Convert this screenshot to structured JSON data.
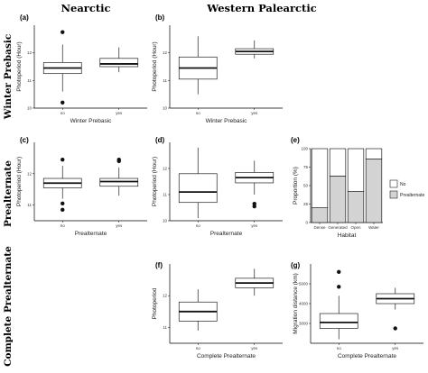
{
  "column_headers": [
    "Nearctic",
    "Western Palearctic"
  ],
  "row_headers": [
    "Winter Prebasic",
    "Prealternate",
    "Complete Prealternate"
  ],
  "chart_data": [
    {
      "id": "a",
      "label": "(a)",
      "type": "box",
      "xlabel": "Winter Prebasic",
      "ylabel": "Photoperiod (Hour)",
      "categories": [
        "no",
        "yes"
      ],
      "ylim": [
        10,
        13
      ],
      "yticks": [
        10,
        11,
        12
      ],
      "boxes": [
        {
          "whisker_low": 10.6,
          "q1": 11.25,
          "median": 11.45,
          "q3": 11.65,
          "whisker_high": 12.3,
          "outliers": [
            10.2,
            12.75
          ]
        },
        {
          "whisker_low": 11.3,
          "q1": 11.5,
          "median": 11.6,
          "q3": 11.8,
          "whisker_high": 12.2,
          "outliers": []
        }
      ]
    },
    {
      "id": "b",
      "label": "(b)",
      "type": "box",
      "xlabel": "Winter Prebasic",
      "ylabel": "Photoperiod (Hour)",
      "categories": [
        "no",
        "yes"
      ],
      "ylim": [
        10,
        13
      ],
      "yticks": [
        10,
        11,
        12
      ],
      "boxes": [
        {
          "whisker_low": 10.5,
          "q1": 11.05,
          "median": 11.45,
          "q3": 11.85,
          "whisker_high": 12.6,
          "outliers": []
        },
        {
          "whisker_low": 11.8,
          "q1": 11.95,
          "median": 12.05,
          "q3": 12.15,
          "whisker_high": 12.45,
          "outliers": []
        }
      ]
    },
    {
      "id": "c",
      "label": "(c)",
      "type": "box",
      "xlabel": "Prealternate",
      "ylabel": "Photoperiod (Hour)",
      "categories": [
        "no",
        "yes"
      ],
      "ylim": [
        10.5,
        13
      ],
      "yticks": [
        11,
        12
      ],
      "boxes": [
        {
          "whisker_low": 11.2,
          "q1": 11.55,
          "median": 11.7,
          "q3": 11.85,
          "whisker_high": 12.25,
          "outliers": [
            10.85,
            11.05,
            12.45
          ]
        },
        {
          "whisker_low": 11.3,
          "q1": 11.6,
          "median": 11.75,
          "q3": 11.85,
          "whisker_high": 12.2,
          "outliers": [
            12.4,
            12.45
          ]
        }
      ]
    },
    {
      "id": "d",
      "label": "(d)",
      "type": "box",
      "xlabel": "Prealternate",
      "ylabel": "Photoperiod (Hour)",
      "categories": [
        "no",
        "yes"
      ],
      "ylim": [
        10,
        13
      ],
      "yticks": [
        10,
        11,
        12
      ],
      "boxes": [
        {
          "whisker_low": 10.1,
          "q1": 10.7,
          "median": 11.1,
          "q3": 11.8,
          "whisker_high": 12.8,
          "outliers": []
        },
        {
          "whisker_low": 11.0,
          "q1": 11.45,
          "median": 11.65,
          "q3": 11.85,
          "whisker_high": 12.3,
          "outliers": [
            10.55,
            10.65
          ]
        }
      ]
    },
    {
      "id": "e",
      "label": "(e)",
      "type": "bar",
      "xlabel": "Habitat",
      "ylabel": "Proportion (%)",
      "categories": [
        "Dense",
        "Generated",
        "Open",
        "Water"
      ],
      "ylim": [
        0,
        100
      ],
      "yticks": [
        0,
        25,
        50,
        75,
        100
      ],
      "series": [
        {
          "name": "Prealternate",
          "values": [
            20,
            63,
            42,
            86
          ],
          "color": "#d3d3d3"
        },
        {
          "name": "No",
          "values": [
            80,
            37,
            58,
            14
          ],
          "color": "#ffffff"
        }
      ],
      "legend_items": [
        "No",
        "Prealternate"
      ]
    },
    {
      "id": "f",
      "label": "(f)",
      "type": "box",
      "xlabel": "Complete Prealternate",
      "ylabel": "Photoperiod",
      "categories": [
        "no",
        "yes"
      ],
      "ylim": [
        10.5,
        13
      ],
      "yticks": [
        11,
        12
      ],
      "boxes": [
        {
          "whisker_low": 10.9,
          "q1": 11.2,
          "median": 11.5,
          "q3": 11.8,
          "whisker_high": 12.2,
          "outliers": []
        },
        {
          "whisker_low": 12.0,
          "q1": 12.25,
          "median": 12.4,
          "q3": 12.55,
          "whisker_high": 12.85,
          "outliers": []
        }
      ]
    },
    {
      "id": "g",
      "label": "(g)",
      "type": "box",
      "xlabel": "Complete Prealternate",
      "ylabel": "Migration distance (km)",
      "categories": [
        "no",
        "yes"
      ],
      "ylim": [
        2000,
        6000
      ],
      "yticks": [
        3000,
        4000,
        5000
      ],
      "boxes": [
        {
          "whisker_low": 2200,
          "q1": 2750,
          "median": 3050,
          "q3": 3500,
          "whisker_high": 4400,
          "outliers": [
            4850,
            5600
          ]
        },
        {
          "whisker_low": 3700,
          "q1": 4000,
          "median": 4250,
          "q3": 4500,
          "whisker_high": 4800,
          "outliers": [
            2750
          ]
        }
      ]
    }
  ]
}
